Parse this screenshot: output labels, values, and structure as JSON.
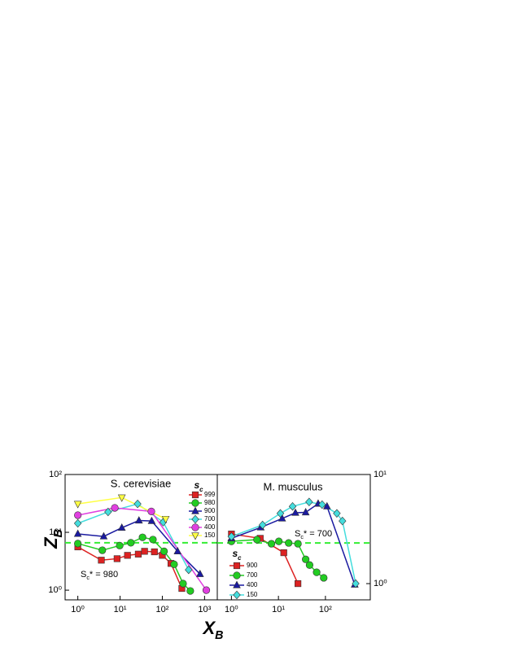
{
  "chart_data": [
    {
      "type": "line",
      "title": "S. cerevisiae",
      "xlabel": [
        "X",
        "B"
      ],
      "ylabel": [
        "Z",
        "B"
      ],
      "xscale": "log",
      "yscale": "log",
      "yaxis_side": "left",
      "xlim": [
        0.5,
        2000
      ],
      "ylim": [
        0.68,
        100
      ],
      "xticks": [
        {
          "value": 1,
          "label": "10⁰"
        },
        {
          "value": 10,
          "label": "10¹"
        },
        {
          "value": 100,
          "label": "10²"
        },
        {
          "value": 1000,
          "label": "10³"
        }
      ],
      "yticks": [
        {
          "value": 1,
          "label": "10⁰"
        },
        {
          "value": 10,
          "label": "10¹"
        },
        {
          "value": 100,
          "label": "10²"
        }
      ],
      "legend_title": [
        "s",
        "c"
      ],
      "legend": "upper right",
      "annotation": [
        "S",
        "c",
        "* = 980"
      ],
      "hline": 6.6,
      "hline_color": "#33ee33",
      "series": [
        {
          "name": "999",
          "color": "#dd2222",
          "marker": "square",
          "x": [
            1,
            3.6,
            8.5,
            15,
            27,
            38,
            65,
            100,
            160,
            290
          ],
          "values": [
            5.6,
            3.3,
            3.5,
            4.0,
            4.2,
            4.7,
            4.6,
            4.0,
            2.9,
            1.07
          ]
        },
        {
          "name": "980",
          "color": "#22cc22",
          "marker": "circle",
          "x": [
            1,
            3.8,
            9.8,
            18,
            34,
            60,
            110,
            190,
            310,
            460
          ],
          "values": [
            6.4,
            4.9,
            5.9,
            6.6,
            8.2,
            7.5,
            4.7,
            2.8,
            1.3,
            0.97
          ]
        },
        {
          "name": "900",
          "color": "#1a1aa0",
          "marker": "triangle-up",
          "x": [
            1,
            4.1,
            11,
            28,
            56,
            230,
            780
          ],
          "values": [
            9.4,
            8.5,
            12,
            16,
            15.7,
            4.7,
            1.9
          ]
        },
        {
          "name": "700",
          "color": "#44dddd",
          "marker": "diamond",
          "x": [
            1,
            5.2,
            26,
            105,
            420
          ],
          "values": [
            14.3,
            22.5,
            31,
            15,
            2.25
          ]
        },
        {
          "name": "400",
          "color": "#e040e0",
          "marker": "circle",
          "x": [
            1,
            7.5,
            55,
            1100
          ],
          "values": [
            19.8,
            26.5,
            23,
            1
          ]
        },
        {
          "name": "150",
          "color": "#ffff44",
          "marker": "triangle-down",
          "x": [
            1,
            11,
            120
          ],
          "values": [
            31,
            40,
            17
          ]
        }
      ]
    },
    {
      "type": "line",
      "title": "M. musculus",
      "xscale": "log",
      "yscale": "log",
      "yaxis_side": "right",
      "xlim": [
        0.5,
        900
      ],
      "ylim": [
        0.71,
        10
      ],
      "xticks": [
        {
          "value": 1,
          "label": "10⁰"
        },
        {
          "value": 10,
          "label": "10¹"
        },
        {
          "value": 100,
          "label": "10²"
        }
      ],
      "yticks": [
        {
          "value": 1,
          "label": "10⁰"
        },
        {
          "value": 10,
          "label": "10¹"
        }
      ],
      "legend_title": [
        "s",
        "c"
      ],
      "legend": "lower left",
      "annotation": [
        "S",
        "c",
        "* = 700"
      ],
      "hline": 2.36,
      "hline_color": "#33ee33",
      "series": [
        {
          "name": "900",
          "color": "#dd2222",
          "marker": "square",
          "x": [
            1,
            4.1,
            13,
            26
          ],
          "values": [
            2.85,
            2.6,
            1.92,
            1.0
          ]
        },
        {
          "name": "700",
          "color": "#22cc22",
          "marker": "circle",
          "x": [
            1,
            3.5,
            7.1,
            10.2,
            16.5,
            26,
            38,
            46,
            65,
            92
          ],
          "values": [
            2.44,
            2.53,
            2.32,
            2.44,
            2.36,
            2.32,
            1.67,
            1.48,
            1.27,
            1.13
          ]
        },
        {
          "name": "400",
          "color": "#1a1aa0",
          "marker": "triangle-up",
          "x": [
            1,
            4.2,
            12,
            23,
            38,
            70,
            108,
            420
          ],
          "values": [
            2.6,
            3.27,
            3.95,
            4.46,
            4.5,
            5.4,
            5.1,
            0.98
          ]
        },
        {
          "name": "150",
          "color": "#44dddd",
          "marker": "diamond",
          "x": [
            1,
            4.6,
            11,
            20,
            45,
            85,
            175,
            230,
            440
          ],
          "values": [
            2.7,
            3.45,
            4.4,
            5.1,
            5.6,
            5.3,
            4.4,
            3.75,
            1
          ]
        }
      ]
    }
  ]
}
